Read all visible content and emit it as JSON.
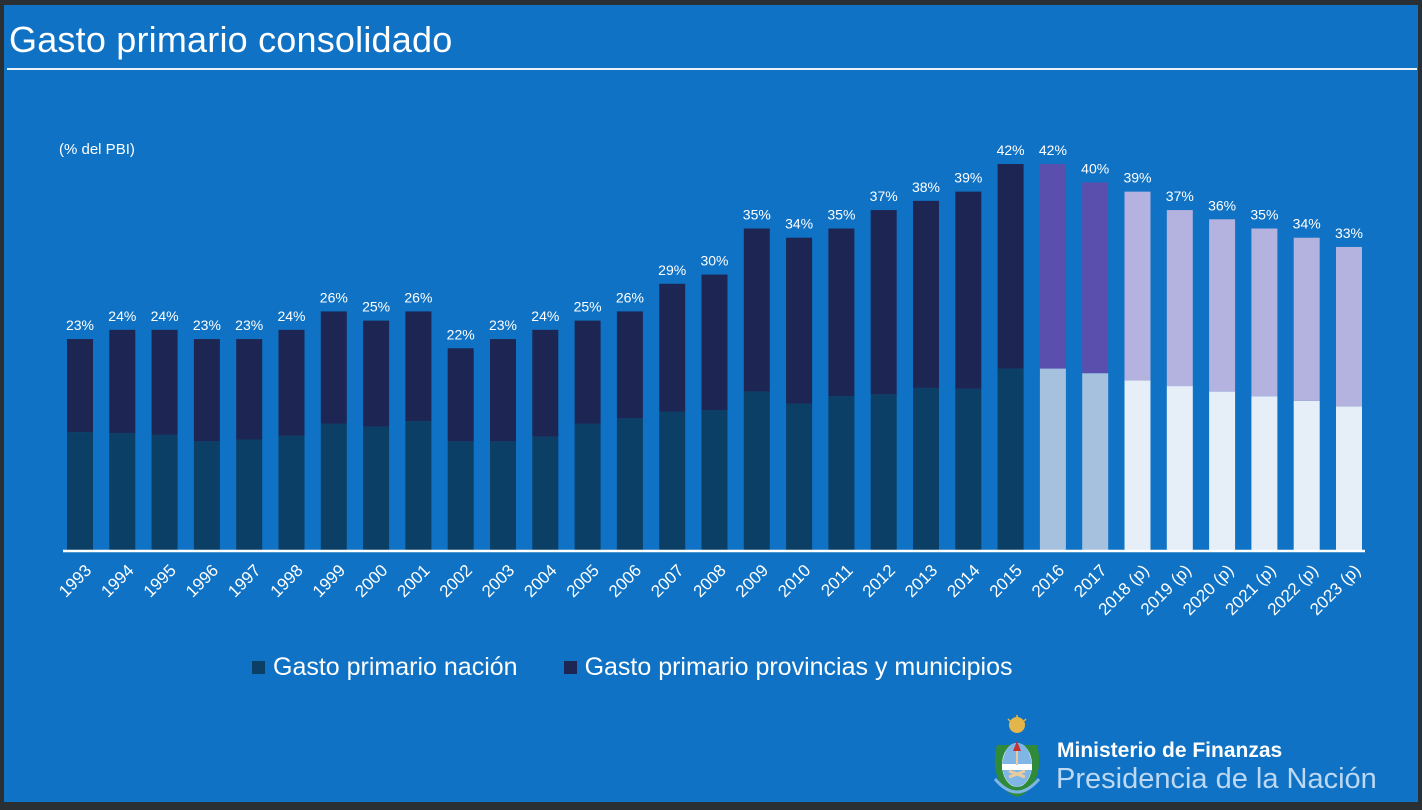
{
  "title": "Gasto primario consolidado",
  "chart_data": {
    "type": "bar",
    "stacked": true,
    "ylabel": "(% del PBI)",
    "ylim": [
      0,
      45
    ],
    "categories": [
      "1993",
      "1994",
      "1995",
      "1996",
      "1997",
      "1998",
      "1999",
      "2000",
      "2001",
      "2002",
      "2003",
      "2004",
      "2005",
      "2006",
      "2007",
      "2008",
      "2009",
      "2010",
      "2011",
      "2012",
      "2013",
      "2014",
      "2015",
      "2016",
      "2017",
      "2018 (p)",
      "2019 (p)",
      "2020 (p)",
      "2021 (p)",
      "2022 (p)",
      "2023 (p)"
    ],
    "series": [
      {
        "name": "Gasto primario nación",
        "values": [
          12.9,
          12.8,
          12.6,
          11.9,
          12.1,
          12.5,
          13.8,
          13.5,
          14.1,
          11.9,
          11.9,
          12.4,
          13.8,
          14.4,
          15.1,
          15.3,
          17.3,
          16.0,
          16.8,
          17.0,
          17.7,
          17.6,
          19.8,
          19.8,
          19.3,
          18.5,
          17.9,
          17.3,
          16.8,
          16.3,
          15.7
        ]
      },
      {
        "name": "Gasto primario provincias y municipios",
        "values": [
          10.1,
          11.2,
          11.4,
          11.1,
          10.9,
          11.5,
          12.2,
          11.5,
          11.9,
          10.1,
          11.1,
          11.6,
          11.2,
          11.6,
          13.9,
          14.7,
          17.7,
          18.0,
          18.2,
          20.0,
          20.3,
          21.4,
          22.2,
          22.2,
          20.7,
          20.5,
          19.1,
          18.7,
          18.2,
          17.7,
          17.3
        ]
      }
    ],
    "total_labels": [
      "23%",
      "24%",
      "24%",
      "23%",
      "23%",
      "24%",
      "26%",
      "25%",
      "26%",
      "22%",
      "23%",
      "24%",
      "25%",
      "26%",
      "29%",
      "30%",
      "35%",
      "34%",
      "35%",
      "37%",
      "38%",
      "39%",
      "42%",
      "42%",
      "40%",
      "39%",
      "37%",
      "36%",
      "35%",
      "34%",
      "33%"
    ],
    "colors": {
      "historical": {
        "nacion": "#0c3f66",
        "provincias": "#1d2652"
      },
      "transition": {
        "nacion": "#a5c1de",
        "provincias": "#5a4fac"
      },
      "projected": {
        "nacion": "#e6eff8",
        "provincias": "#b4b2de"
      }
    },
    "transition_years": [
      "2016",
      "2017"
    ],
    "projected_from": "2018 (p)"
  },
  "legend": {
    "items": [
      {
        "label": "Gasto primario nación",
        "color": "#0c3f66"
      },
      {
        "label": "Gasto primario provincias y municipios",
        "color": "#1d2652"
      }
    ]
  },
  "logo": {
    "ministry": "Ministerio de Finanzas",
    "presidency": "Presidencia de la Nación"
  }
}
